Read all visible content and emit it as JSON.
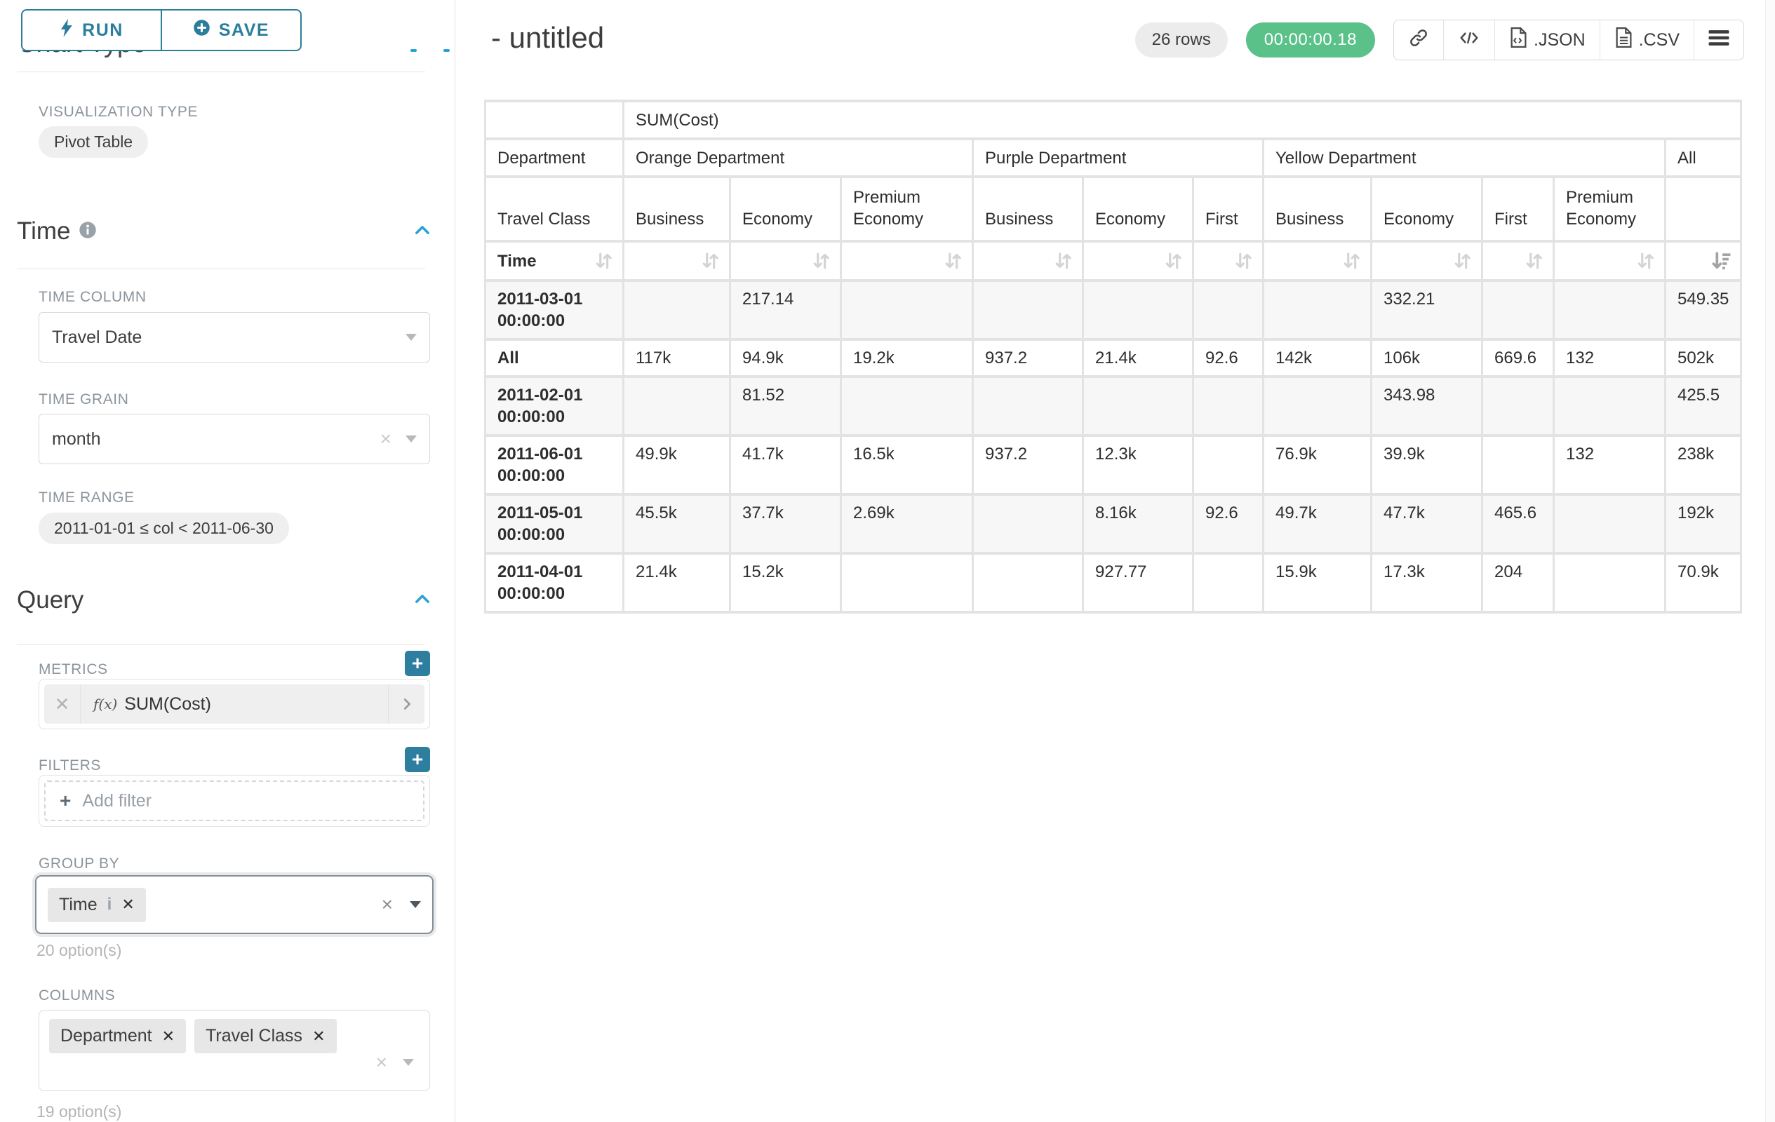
{
  "colors": {
    "accent_teal": "#2a7e9c",
    "chevron_blue": "#2aa0d8",
    "timer_green": "#5ac189"
  },
  "sidebar": {
    "run_label": "RUN",
    "save_label": "SAVE",
    "chart_type_title": "Chart Type",
    "viz_type_label": "VISUALIZATION TYPE",
    "viz_type_value": "Pivot Table",
    "time_title": "Time",
    "time_column_label": "TIME COLUMN",
    "time_column_value": "Travel Date",
    "time_grain_label": "TIME GRAIN",
    "time_grain_value": "month",
    "time_range_label": "TIME RANGE",
    "time_range_value": "2011-01-01 ≤ col < 2011-06-30",
    "query_title": "Query",
    "metrics_label": "METRICS",
    "metric_fx": "f(x)",
    "metric_value": "SUM(Cost)",
    "filters_label": "FILTERS",
    "add_filter_label": "Add filter",
    "group_by_label": "GROUP BY",
    "group_by_tag": "Time",
    "group_by_hint": "20 option(s)",
    "columns_label": "COLUMNS",
    "columns_tags": [
      "Department",
      "Travel Class"
    ],
    "columns_hint": "19 option(s)"
  },
  "header": {
    "title": "- untitled",
    "row_count": "26 rows",
    "timer": "00:00:00.18",
    "json_label": ".JSON",
    "csv_label": ".CSV"
  },
  "pivot": {
    "metric_header": "SUM(Cost)",
    "corner_label": "Department",
    "row_dim_label": "Travel Class",
    "sort_row_label": "Time",
    "col_groups": [
      {
        "label": "Orange Department",
        "cols": [
          "Business",
          "Economy",
          "Premium Economy"
        ]
      },
      {
        "label": "Purple Department",
        "cols": [
          "Business",
          "Economy",
          "First"
        ]
      },
      {
        "label": "Yellow Department",
        "cols": [
          "Business",
          "Economy",
          "First",
          "Premium Economy"
        ]
      },
      {
        "label": "All",
        "cols": [
          ""
        ]
      }
    ],
    "rows": [
      {
        "label": "2011-03-01 00:00:00",
        "values": [
          "",
          "217.14",
          "",
          "",
          "",
          "",
          "",
          "332.21",
          "",
          "",
          "549.35"
        ]
      },
      {
        "label": "All",
        "values": [
          "117k",
          "94.9k",
          "19.2k",
          "937.2",
          "21.4k",
          "92.6",
          "142k",
          "106k",
          "669.6",
          "132",
          "502k"
        ]
      },
      {
        "label": "2011-02-01 00:00:00",
        "values": [
          "",
          "81.52",
          "",
          "",
          "",
          "",
          "",
          "343.98",
          "",
          "",
          "425.5"
        ]
      },
      {
        "label": "2011-06-01 00:00:00",
        "values": [
          "49.9k",
          "41.7k",
          "16.5k",
          "937.2",
          "12.3k",
          "",
          "76.9k",
          "39.9k",
          "",
          "132",
          "238k"
        ]
      },
      {
        "label": "2011-05-01 00:00:00",
        "values": [
          "45.5k",
          "37.7k",
          "2.69k",
          "",
          "8.16k",
          "92.6",
          "49.7k",
          "47.7k",
          "465.6",
          "",
          "192k"
        ]
      },
      {
        "label": "2011-04-01 00:00:00",
        "values": [
          "21.4k",
          "15.2k",
          "",
          "",
          "927.77",
          "",
          "15.9k",
          "17.3k",
          "204",
          "",
          "70.9k"
        ]
      }
    ]
  }
}
